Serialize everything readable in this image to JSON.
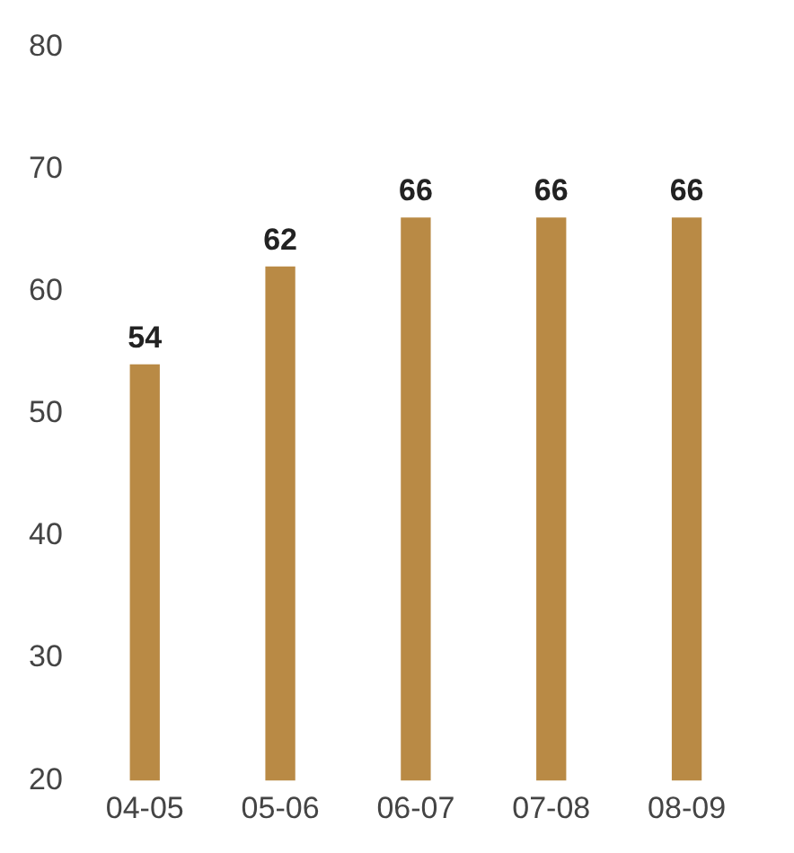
{
  "chart_data": {
    "type": "bar",
    "categories": [
      "04-05",
      "05-06",
      "06-07",
      "07-08",
      "08-09"
    ],
    "values": [
      54,
      62,
      66,
      66,
      66
    ],
    "color": "#b98a45",
    "ylim": [
      20,
      80
    ],
    "yticks": [
      20,
      30,
      40,
      50,
      60,
      70,
      80
    ],
    "grid": false,
    "data_labels": true
  }
}
